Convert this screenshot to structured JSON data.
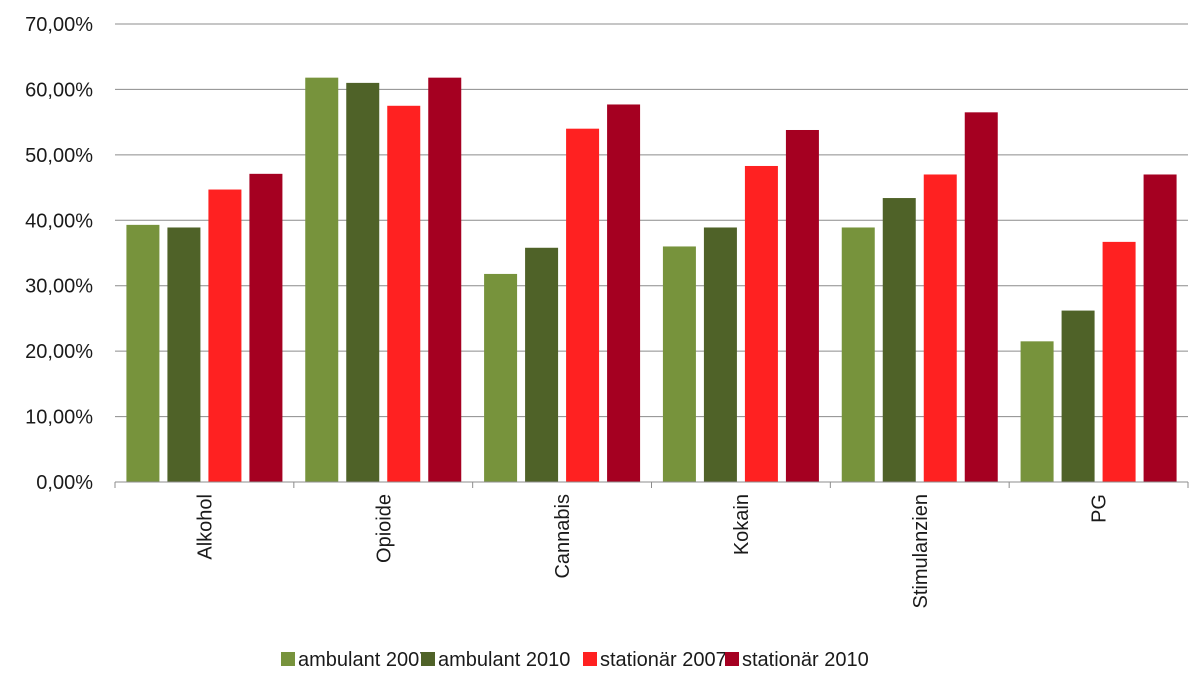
{
  "chart_data": {
    "type": "bar",
    "title": "",
    "xlabel": "",
    "ylabel": "",
    "categories": [
      "Alkohol",
      "Opioide",
      "Cannabis",
      "Kokain",
      "Stimulanzien",
      "PG"
    ],
    "ylim": [
      0,
      70
    ],
    "yticks": [
      0,
      10,
      20,
      30,
      40,
      50,
      60,
      70
    ],
    "ytick_labels": [
      "0,00%",
      "10,00%",
      "20,00%",
      "30,00%",
      "40,00%",
      "50,00%",
      "60,00%",
      "70,00%"
    ],
    "grid": true,
    "legend_position": "bottom",
    "series": [
      {
        "name": "ambulant 2007",
        "color": "#77933c",
        "values": [
          39.3,
          61.8,
          31.8,
          36.0,
          38.9,
          21.5
        ]
      },
      {
        "name": "ambulant 2010",
        "color": "#4f6228",
        "values": [
          38.9,
          61.0,
          35.8,
          38.9,
          43.4,
          26.2
        ]
      },
      {
        "name": "stationär 2007",
        "color": "#ff2121",
        "values": [
          44.7,
          57.5,
          54.0,
          48.3,
          47.0,
          36.7
        ]
      },
      {
        "name": "stationär 2010",
        "color": "#a50021",
        "values": [
          47.1,
          61.8,
          57.7,
          53.8,
          56.5,
          47.0
        ]
      }
    ]
  }
}
